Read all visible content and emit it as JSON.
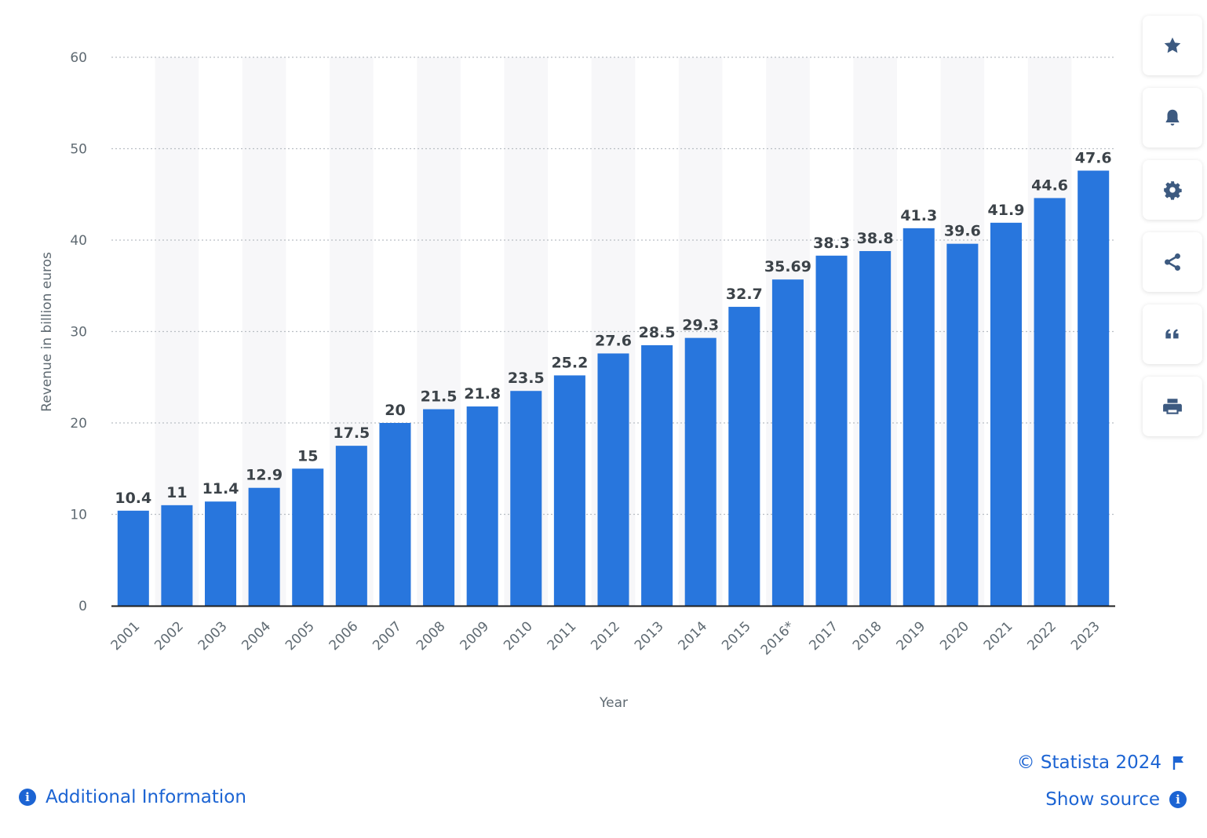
{
  "chart_data": {
    "type": "bar",
    "categories": [
      "2001",
      "2002",
      "2003",
      "2004",
      "2005",
      "2006",
      "2007",
      "2008",
      "2009",
      "2010",
      "2011",
      "2012",
      "2013",
      "2014",
      "2015",
      "2016*",
      "2017",
      "2018",
      "2019",
      "2020",
      "2021",
      "2022",
      "2023"
    ],
    "values": [
      10.4,
      11,
      11.4,
      12.9,
      15,
      17.5,
      20,
      21.5,
      21.8,
      23.5,
      25.2,
      27.6,
      28.5,
      29.3,
      32.7,
      35.69,
      38.3,
      38.8,
      41.3,
      39.6,
      41.9,
      44.6,
      47.6
    ],
    "xlabel": "Year",
    "ylabel": "Revenue in billion euros",
    "ylim": [
      0,
      60
    ],
    "yticks": [
      0,
      10,
      20,
      30,
      40,
      50,
      60
    ],
    "grid": true,
    "bar_color": "#2876dd"
  },
  "toolbar": [
    {
      "name": "favorite",
      "icon": "star-icon"
    },
    {
      "name": "notification",
      "icon": "bell-icon"
    },
    {
      "name": "settings",
      "icon": "gear-icon"
    },
    {
      "name": "share",
      "icon": "share-icon"
    },
    {
      "name": "cite",
      "icon": "quote-icon"
    },
    {
      "name": "print",
      "icon": "printer-icon"
    }
  ],
  "footer": {
    "additional_info": "Additional Information",
    "copyright": "© Statista 2024",
    "show_source": "Show source"
  },
  "colors": {
    "accent": "#1c64d3",
    "icon": "#3d5a80"
  }
}
